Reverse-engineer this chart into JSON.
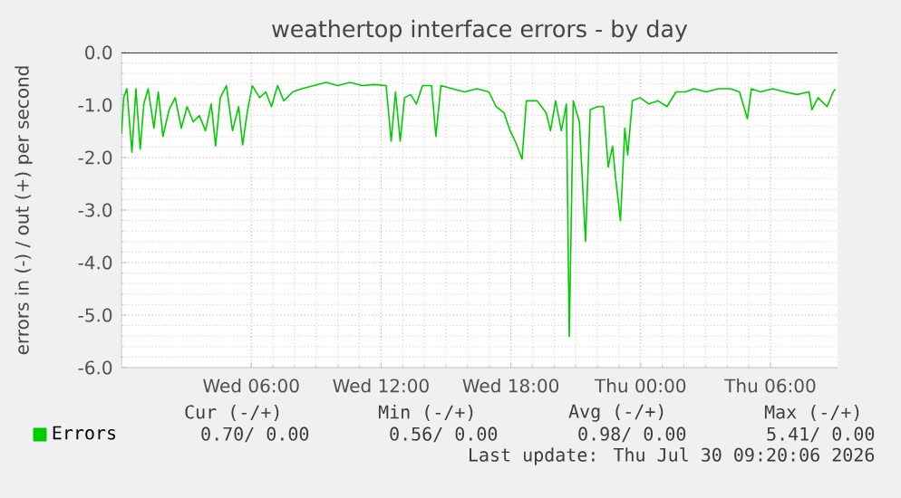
{
  "chart_data": {
    "type": "line",
    "title": "weathertop interface errors - by day",
    "ylabel": "errors in (-) / out (+) per second",
    "x": [
      "2026-07-29T00:00",
      "2026-07-29T00:06",
      "2026-07-29T00:15",
      "2026-07-29T00:29",
      "2026-07-29T00:40",
      "2026-07-29T00:52",
      "2026-07-29T01:02",
      "2026-07-29T01:14",
      "2026-07-29T01:30",
      "2026-07-29T01:42",
      "2026-07-29T01:55",
      "2026-07-29T02:12",
      "2026-07-29T02:29",
      "2026-07-29T02:46",
      "2026-07-29T03:02",
      "2026-07-29T03:19",
      "2026-07-29T03:36",
      "2026-07-29T03:53",
      "2026-07-29T04:09",
      "2026-07-29T04:21",
      "2026-07-29T04:34",
      "2026-07-29T04:51",
      "2026-07-29T05:08",
      "2026-07-29T05:25",
      "2026-07-29T05:36",
      "2026-07-29T05:50",
      "2026-07-29T06:03",
      "2026-07-29T06:23",
      "2026-07-29T06:40",
      "2026-07-29T06:56",
      "2026-07-29T07:13",
      "2026-07-29T07:30",
      "2026-07-29T07:55",
      "2026-07-29T08:20",
      "2026-07-29T08:54",
      "2026-07-29T09:27",
      "2026-07-29T10:00",
      "2026-07-29T10:34",
      "2026-07-29T11:08",
      "2026-07-29T11:41",
      "2026-07-29T12:14",
      "2026-07-29T12:28",
      "2026-07-29T12:40",
      "2026-07-29T12:53",
      "2026-07-29T13:05",
      "2026-07-29T13:22",
      "2026-07-29T13:38",
      "2026-07-29T13:55",
      "2026-07-29T14:20",
      "2026-07-29T14:32",
      "2026-07-29T14:46",
      "2026-07-29T15:18",
      "2026-07-29T15:52",
      "2026-07-29T16:26",
      "2026-07-29T16:59",
      "2026-07-29T17:19",
      "2026-07-29T17:41",
      "2026-07-29T17:58",
      "2026-07-29T18:14",
      "2026-07-29T18:31",
      "2026-07-29T18:43",
      "2026-07-29T19:13",
      "2026-07-29T19:38",
      "2026-07-29T19:50",
      "2026-07-29T20:04",
      "2026-07-29T20:20",
      "2026-07-29T20:34",
      "2026-07-29T20:42",
      "2026-07-29T20:53",
      "2026-07-29T21:10",
      "2026-07-29T21:27",
      "2026-07-29T21:40",
      "2026-07-29T22:00",
      "2026-07-29T22:17",
      "2026-07-29T22:30",
      "2026-07-29T22:42",
      "2026-07-29T22:50",
      "2026-07-29T23:04",
      "2026-07-29T23:16",
      "2026-07-29T23:24",
      "2026-07-29T23:37",
      "2026-07-29T23:58",
      "2026-07-30T00:23",
      "2026-07-30T00:48",
      "2026-07-30T01:13",
      "2026-07-30T01:38",
      "2026-07-30T02:04",
      "2026-07-30T02:28",
      "2026-07-30T03:02",
      "2026-07-30T03:35",
      "2026-07-30T04:09",
      "2026-07-30T04:34",
      "2026-07-30T04:56",
      "2026-07-30T05:07",
      "2026-07-30T05:32",
      "2026-07-30T06:06",
      "2026-07-30T06:40",
      "2026-07-30T07:13",
      "2026-07-30T07:47",
      "2026-07-30T07:55",
      "2026-07-30T08:12",
      "2026-07-30T08:37",
      "2026-07-30T08:54",
      "2026-07-30T09:00"
    ],
    "series": [
      {
        "name": "Errors",
        "color": "#00cc00",
        "values": [
          -1.55,
          -0.86,
          -0.69,
          -1.9,
          -0.69,
          -1.84,
          -0.98,
          -0.69,
          -1.44,
          -0.75,
          -1.6,
          -1.09,
          -0.86,
          -1.44,
          -1.03,
          -1.32,
          -1.2,
          -1.49,
          -0.98,
          -1.78,
          -0.86,
          -0.63,
          -1.49,
          -1.03,
          -1.76,
          -1.09,
          -0.63,
          -0.86,
          -0.75,
          -1.03,
          -0.63,
          -0.92,
          -0.75,
          -0.69,
          -0.63,
          -0.57,
          -0.63,
          -0.57,
          -0.63,
          -0.61,
          -0.63,
          -1.69,
          -0.75,
          -1.69,
          -0.86,
          -0.8,
          -0.98,
          -0.63,
          -0.63,
          -1.6,
          -0.63,
          -0.69,
          -0.75,
          -0.69,
          -0.75,
          -1.03,
          -1.15,
          -1.49,
          -1.72,
          -2.03,
          -0.92,
          -0.92,
          -1.15,
          -1.49,
          -0.92,
          -1.49,
          -0.98,
          -5.41,
          -0.92,
          -1.32,
          -3.6,
          -1.09,
          -1.03,
          -1.03,
          -2.18,
          -1.78,
          -2.36,
          -3.2,
          -1.44,
          -1.95,
          -0.92,
          -0.86,
          -0.98,
          -0.92,
          -1.03,
          -0.75,
          -0.75,
          -0.69,
          -0.75,
          -0.69,
          -0.69,
          -0.75,
          -1.26,
          -0.69,
          -0.75,
          -0.69,
          -0.75,
          -0.8,
          -0.75,
          -1.09,
          -0.86,
          -1.03,
          -0.75,
          -0.7
        ]
      }
    ],
    "xlim": [
      "2026-07-29T00:00",
      "2026-07-30T09:06"
    ],
    "xticks": [
      {
        "value": "2026-07-29T06:00",
        "label": "Wed 06:00"
      },
      {
        "value": "2026-07-29T12:00",
        "label": "Wed 12:00"
      },
      {
        "value": "2026-07-29T18:00",
        "label": "Wed 18:00"
      },
      {
        "value": "2026-07-30T00:00",
        "label": "Thu 00:00"
      },
      {
        "value": "2026-07-30T06:00",
        "label": "Thu 06:00"
      }
    ],
    "ylim": [
      -6,
      0
    ],
    "yticks": [
      {
        "value": -6,
        "label": "-6.0"
      },
      {
        "value": -5,
        "label": "-5.0"
      },
      {
        "value": -4,
        "label": "-4.0"
      },
      {
        "value": -3,
        "label": "-3.0"
      },
      {
        "value": -2,
        "label": "-2.0"
      },
      {
        "value": -1,
        "label": "-1.0"
      },
      {
        "value": 0,
        "label": "0.0"
      }
    ],
    "grid": true,
    "legend": "bottom",
    "annotations": [
      "Cur (-/+)",
      "Min (-/+)",
      "Avg (-/+)",
      "Max (-/+)",
      "0.70/   0.00",
      "0.56/   0.00",
      "0.98/   0.00",
      "5.41/   0.00",
      "Last update: Thu Jul 30 09:20:06 2026"
    ]
  }
}
